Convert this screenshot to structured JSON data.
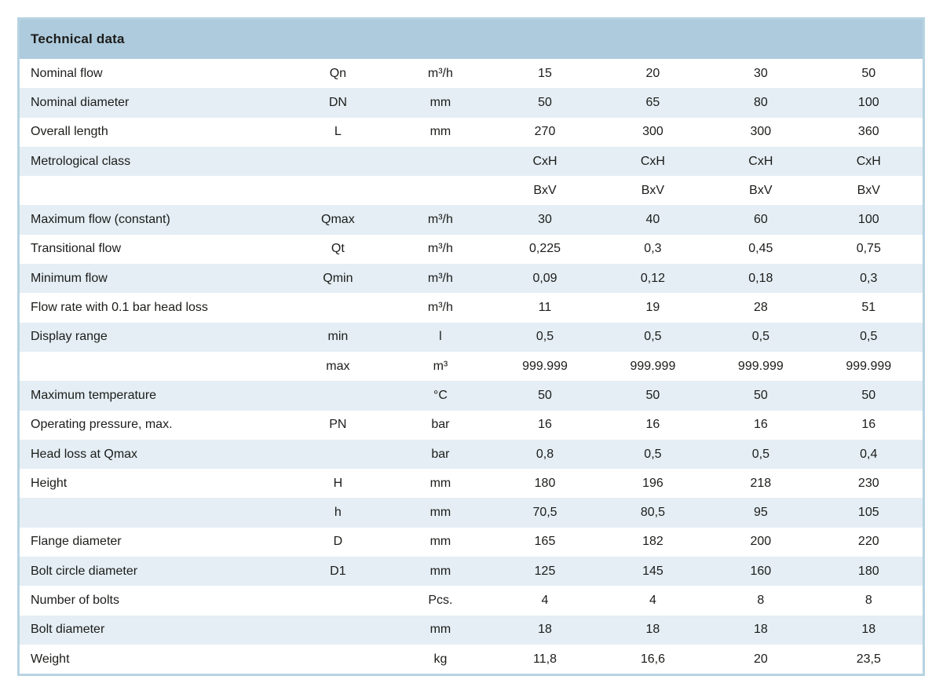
{
  "title": "Technical data",
  "colors": {
    "header_bg": "#aecbdd",
    "stripe_bg": "#e4eef4",
    "border": "#b7d3e2",
    "text": "#1c1c1a"
  },
  "table": {
    "rows": [
      {
        "name": "Nominal flow",
        "symbol": "Qn",
        "unit": "m³/h",
        "values": [
          "15",
          "20",
          "30",
          "50"
        ]
      },
      {
        "name": "Nominal diameter",
        "symbol": "DN",
        "unit": "mm",
        "values": [
          "50",
          "65",
          "80",
          "100"
        ]
      },
      {
        "name": "Overall length",
        "symbol": "L",
        "unit": "mm",
        "values": [
          "270",
          "300",
          "300",
          "360"
        ]
      },
      {
        "name": "Metrological class",
        "symbol": "",
        "unit": "",
        "values": [
          "CxH",
          "CxH",
          "CxH",
          "CxH"
        ]
      },
      {
        "name": "",
        "symbol": "",
        "unit": "",
        "values": [
          "BxV",
          "BxV",
          "BxV",
          "BxV"
        ]
      },
      {
        "name": "Maximum flow (constant)",
        "symbol": "Qmax",
        "unit": "m³/h",
        "values": [
          "30",
          "40",
          "60",
          "100"
        ]
      },
      {
        "name": "Transitional flow",
        "symbol": "Qt",
        "unit": "m³/h",
        "values": [
          "0,225",
          "0,3",
          "0,45",
          "0,75"
        ]
      },
      {
        "name": "Minimum flow",
        "symbol": "Qmin",
        "unit": "m³/h",
        "values": [
          "0,09",
          "0,12",
          "0,18",
          "0,3"
        ]
      },
      {
        "name": "Flow rate with 0.1 bar head loss",
        "symbol": "",
        "unit": "m³/h",
        "values": [
          "11",
          "19",
          "28",
          "51"
        ]
      },
      {
        "name": "Display range",
        "symbol": "min",
        "unit": "l",
        "values": [
          "0,5",
          "0,5",
          "0,5",
          "0,5"
        ]
      },
      {
        "name": "",
        "symbol": "max",
        "unit": "m³",
        "values": [
          "999.999",
          "999.999",
          "999.999",
          "999.999"
        ]
      },
      {
        "name": "Maximum temperature",
        "symbol": "",
        "unit": "°C",
        "values": [
          "50",
          "50",
          "50",
          "50"
        ]
      },
      {
        "name": "Operating pressure, max.",
        "symbol": "PN",
        "unit": "bar",
        "values": [
          "16",
          "16",
          "16",
          "16"
        ]
      },
      {
        "name": "Head loss at Qmax",
        "symbol": "",
        "unit": "bar",
        "values": [
          "0,8",
          "0,5",
          "0,5",
          "0,4"
        ]
      },
      {
        "name": "Height",
        "symbol": "H",
        "unit": "mm",
        "values": [
          "180",
          "196",
          "218",
          "230"
        ]
      },
      {
        "name": "",
        "symbol": "h",
        "unit": "mm",
        "values": [
          "70,5",
          "80,5",
          "95",
          "105"
        ]
      },
      {
        "name": "Flange diameter",
        "symbol": "D",
        "unit": "mm",
        "values": [
          "165",
          "182",
          "200",
          "220"
        ]
      },
      {
        "name": "Bolt circle diameter",
        "symbol": "D1",
        "unit": "mm",
        "values": [
          "125",
          "145",
          "160",
          "180"
        ]
      },
      {
        "name": "Number of bolts",
        "symbol": "",
        "unit": "Pcs.",
        "values": [
          "4",
          "4",
          "8",
          "8"
        ]
      },
      {
        "name": "Bolt diameter",
        "symbol": "",
        "unit": "mm",
        "values": [
          "18",
          "18",
          "18",
          "18"
        ]
      },
      {
        "name": "Weight",
        "symbol": "",
        "unit": "kg",
        "values": [
          "11,8",
          "16,6",
          "20",
          "23,5"
        ]
      }
    ]
  }
}
